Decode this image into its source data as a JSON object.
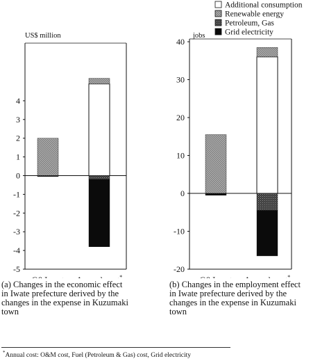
{
  "legend": {
    "items": [
      {
        "label": "Additional consumption",
        "fill": "white"
      },
      {
        "label": "Renewable energy",
        "fill": "hatch"
      },
      {
        "label": "Petroleum, Gas",
        "fill": "dark-dots"
      },
      {
        "label": "Grid electricity",
        "fill": "black"
      }
    ]
  },
  "colors": {
    "ink": "#111111",
    "hatch_bg": "#b5b5b5",
    "hatch_line": "#6a6a6a",
    "dark_dots_bg": "#3a3a3a"
  },
  "chart_data": [
    {
      "type": "bar",
      "stacked": true,
      "ylabel": "US$ million",
      "ylim": [
        -5,
        5
      ],
      "yticks": [
        "-5",
        "-4",
        "-3",
        "-2",
        "-1",
        "0",
        "1",
        "2",
        "3",
        "4"
      ],
      "categories": [
        "C&I cost",
        "Annual cost"
      ],
      "category_superscripts": [
        "",
        "*"
      ],
      "series": [
        {
          "name": "Additional consumption",
          "values": [
            0,
            4.9
          ]
        },
        {
          "name": "Renewable energy",
          "values": [
            2.0,
            0.3
          ]
        },
        {
          "name": "Petroleum, Gas",
          "values": [
            0,
            -0.2
          ]
        },
        {
          "name": "Grid electricity",
          "values": [
            -0.05,
            -3.6
          ]
        }
      ],
      "caption": [
        "(a) Changes in the economic effect",
        "in Iwate prefecture derived by the",
        "changes in the expense in Kuzumaki",
        "town"
      ]
    },
    {
      "type": "bar",
      "stacked": true,
      "ylabel": "jobs",
      "ylim": [
        -20,
        40
      ],
      "yticks": [
        "-20",
        "-10",
        "0",
        "10",
        "20",
        "30",
        "40"
      ],
      "categories": [
        "C&I cost",
        "Annual cost"
      ],
      "category_superscripts": [
        "",
        "*"
      ],
      "series": [
        {
          "name": "Additional consumption",
          "values": [
            0,
            36
          ]
        },
        {
          "name": "Renewable energy",
          "values": [
            15.5,
            2.5
          ]
        },
        {
          "name": "Petroleum, Gas",
          "values": [
            0,
            -4.5
          ]
        },
        {
          "name": "Grid electricity",
          "values": [
            -0.5,
            -12
          ]
        }
      ],
      "caption": [
        "(b) Changes in the employment effect",
        "in Iwate prefecture derived by the",
        "changes in the expense in Kuzumaki",
        "town"
      ]
    }
  ],
  "footnote": {
    "marker": "*",
    "text": "Annual cost: O&M cost, Fuel (Petroleum & Gas) cost, Grid electricity"
  }
}
